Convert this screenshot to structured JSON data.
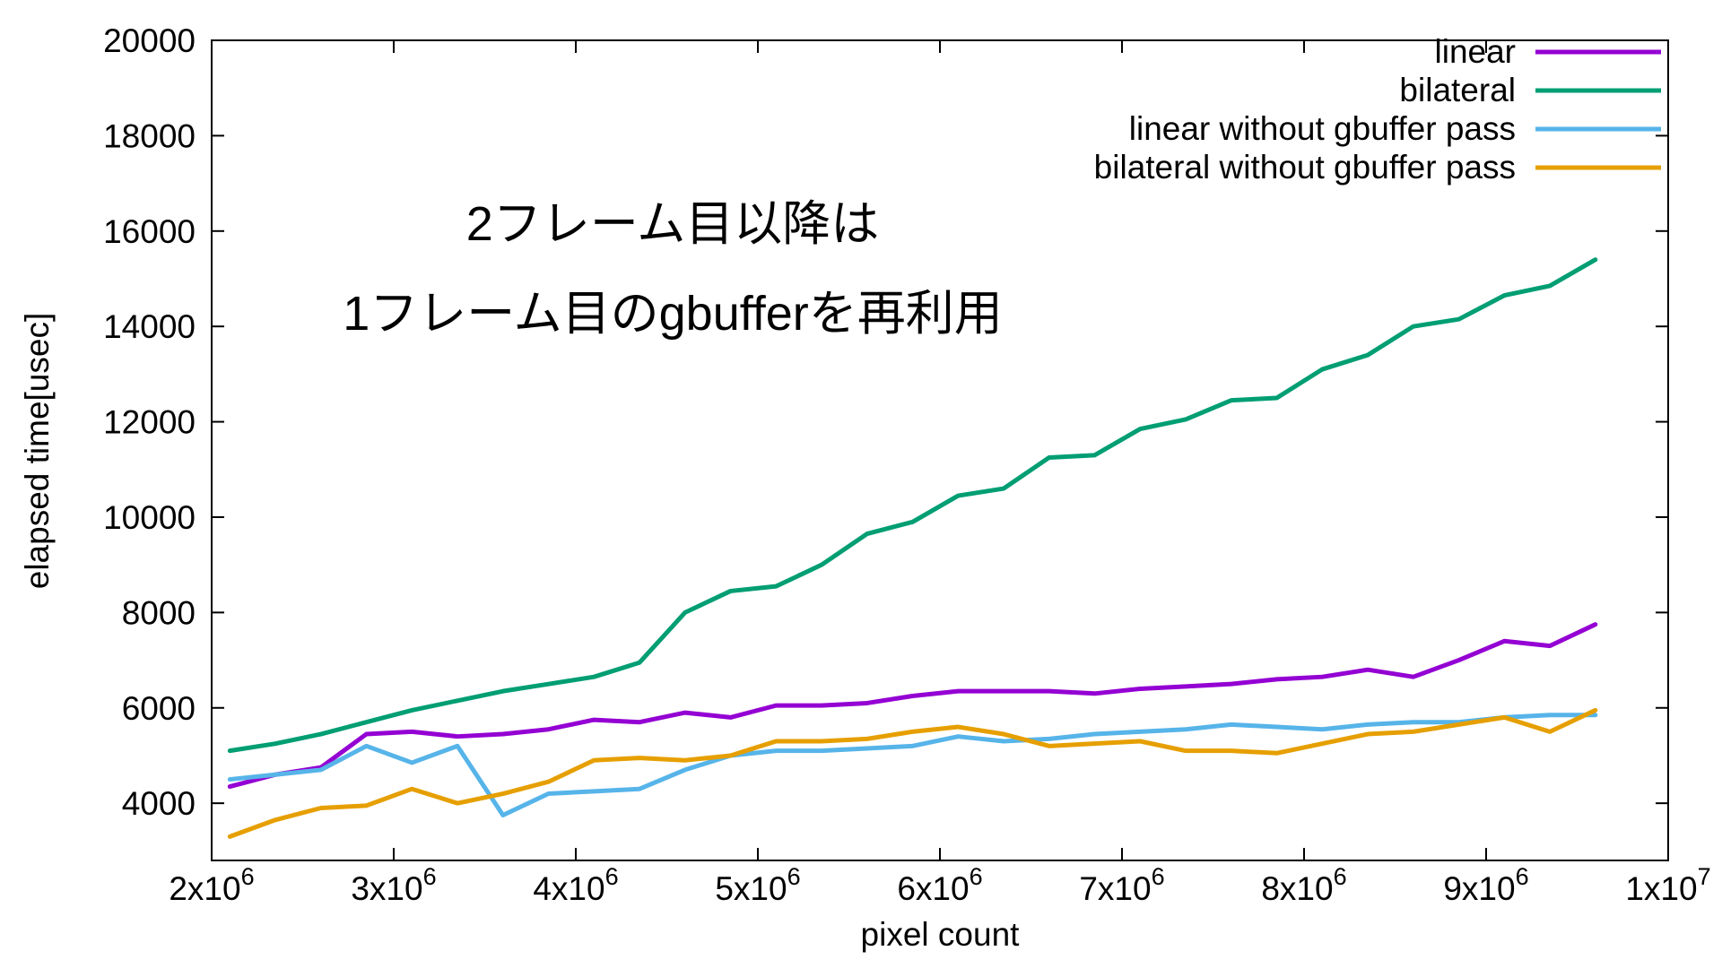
{
  "chart_data": {
    "type": "line",
    "title": "",
    "xlabel": "pixel count",
    "ylabel": "elapsed time[usec]",
    "xlim": [
      2000000,
      10000000
    ],
    "ylim": [
      2800,
      20000
    ],
    "grid": false,
    "legend_position": "top-right-inside",
    "x_ticks": [
      {
        "value": 2000000,
        "base": "2x10",
        "exp": "6"
      },
      {
        "value": 3000000,
        "base": "3x10",
        "exp": "6"
      },
      {
        "value": 4000000,
        "base": "4x10",
        "exp": "6"
      },
      {
        "value": 5000000,
        "base": "5x10",
        "exp": "6"
      },
      {
        "value": 6000000,
        "base": "6x10",
        "exp": "6"
      },
      {
        "value": 7000000,
        "base": "7x10",
        "exp": "6"
      },
      {
        "value": 8000000,
        "base": "8x10",
        "exp": "6"
      },
      {
        "value": 9000000,
        "base": "9x10",
        "exp": "6"
      },
      {
        "value": 10000000,
        "base": "1x10",
        "exp": "7"
      }
    ],
    "y_ticks": [
      4000,
      6000,
      8000,
      10000,
      12000,
      14000,
      16000,
      18000,
      20000
    ],
    "x": [
      2100000,
      2350000,
      2600000,
      2850000,
      3100000,
      3350000,
      3600000,
      3850000,
      4100000,
      4350000,
      4600000,
      4850000,
      5100000,
      5350000,
      5600000,
      5850000,
      6100000,
      6350000,
      6600000,
      6850000,
      7100000,
      7350000,
      7600000,
      7850000,
      8100000,
      8350000,
      8600000,
      8850000,
      9100000,
      9350000,
      9600000
    ],
    "series": [
      {
        "name": "linear",
        "color": "#9400d3",
        "values": [
          4350,
          4600,
          4750,
          5450,
          5500,
          5400,
          5450,
          5550,
          5750,
          5700,
          5900,
          5800,
          6050,
          6050,
          6100,
          6250,
          6350,
          6350,
          6350,
          6300,
          6400,
          6450,
          6500,
          6600,
          6650,
          6800,
          6650,
          7000,
          7400,
          7300,
          7750
        ]
      },
      {
        "name": "bilateral",
        "color": "#009e73",
        "values": [
          5100,
          5250,
          5450,
          5700,
          5950,
          6150,
          6350,
          6500,
          6650,
          6950,
          8000,
          8450,
          8550,
          9000,
          9650,
          9900,
          10450,
          10600,
          11250,
          11300,
          11850,
          12050,
          12450,
          12500,
          13100,
          13400,
          14000,
          14150,
          14650,
          14850,
          15400
        ]
      },
      {
        "name": "linear without gbuffer pass",
        "color": "#56b4e9",
        "values": [
          4500,
          4600,
          4700,
          5200,
          4850,
          5200,
          3750,
          4200,
          4250,
          4300,
          4700,
          5000,
          5100,
          5100,
          5150,
          5200,
          5400,
          5300,
          5350,
          5450,
          5500,
          5550,
          5650,
          5600,
          5550,
          5650,
          5700,
          5700,
          5800,
          5850,
          5850
        ]
      },
      {
        "name": "bilateral without gbuffer pass",
        "color": "#e69f00",
        "values": [
          3300,
          3650,
          3900,
          3950,
          4300,
          4000,
          4200,
          4450,
          4900,
          4950,
          4900,
          5000,
          5300,
          5300,
          5350,
          5500,
          5600,
          5450,
          5200,
          5250,
          5300,
          5100,
          5100,
          5050,
          5250,
          5450,
          5500,
          5650,
          5800,
          5500,
          5950
        ]
      }
    ],
    "annotation": [
      "2フレーム目以降は",
      "1フレーム目のgbufferを再利用"
    ]
  },
  "colors": {
    "background": "#ffffff",
    "axis": "#000000",
    "text": "#000000"
  }
}
